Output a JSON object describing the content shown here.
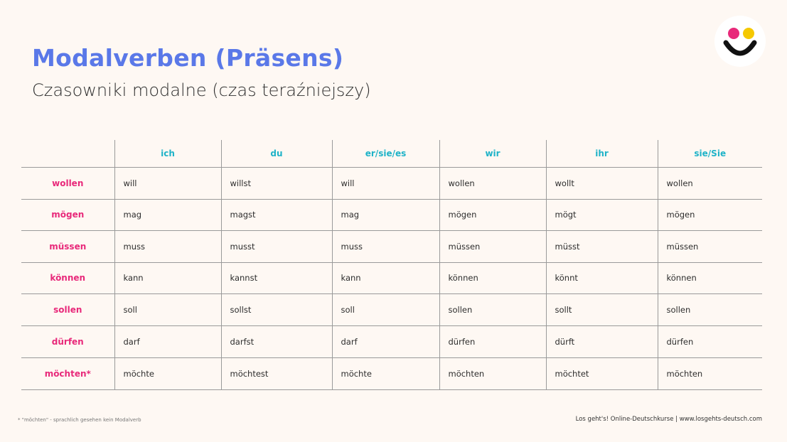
{
  "header": {
    "title": "Modalverben (Präsens)",
    "subtitle": "Czasowniki modalne (czas teraźniejszy)"
  },
  "logo": {
    "icon": "smiley-face-icon",
    "dot_colors": [
      "#e8297a",
      "#f5c800"
    ],
    "smile_color": "#111111"
  },
  "table": {
    "columns": [
      "ich",
      "du",
      "er/sie/es",
      "wir",
      "ihr",
      "sie/Sie"
    ],
    "rows": [
      {
        "verb": "wollen",
        "forms": [
          "will",
          "willst",
          "will",
          "wollen",
          "wollt",
          "wollen"
        ]
      },
      {
        "verb": "mögen",
        "forms": [
          "mag",
          "magst",
          "mag",
          "mögen",
          "mögt",
          "mögen"
        ]
      },
      {
        "verb": "müssen",
        "forms": [
          "muss",
          "musst",
          "muss",
          "müssen",
          "müsst",
          "müssen"
        ]
      },
      {
        "verb": "können",
        "forms": [
          "kann",
          "kannst",
          "kann",
          "können",
          "könnt",
          "können"
        ]
      },
      {
        "verb": "sollen",
        "forms": [
          "soll",
          "sollst",
          "soll",
          "sollen",
          "sollt",
          "sollen"
        ]
      },
      {
        "verb": "dürfen",
        "forms": [
          "darf",
          "darfst",
          "darf",
          "dürfen",
          "dürft",
          "dürfen"
        ]
      },
      {
        "verb": "möchten*",
        "forms": [
          "möchte",
          "möchtest",
          "möchte",
          "möchten",
          "möchtet",
          "möchten"
        ]
      }
    ]
  },
  "footnote": "* \"möchten\" - sprachlich gesehen kein Modalverb",
  "footer": "Los geht's! Online-Deutschkurse  |   www.losgehts-deutsch.com",
  "colors": {
    "title": "#5a78e8",
    "header": "#1fb3c8",
    "verb": "#e8297a",
    "background": "#fef8f3"
  }
}
